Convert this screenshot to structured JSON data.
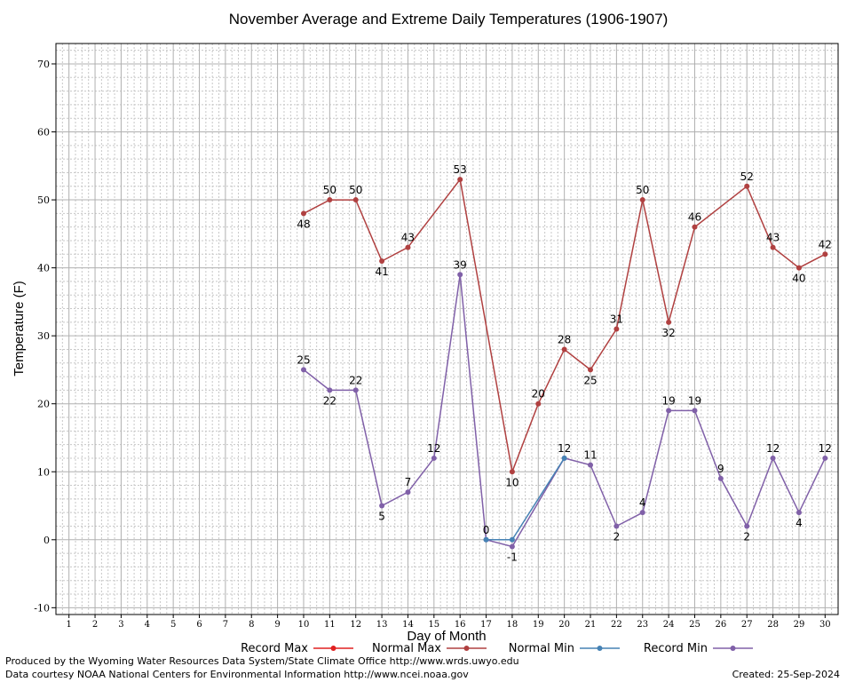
{
  "chart_data": {
    "type": "line",
    "title": "November Average and Extreme Daily Temperatures (1906-1907)",
    "xlabel": "Day of Month",
    "ylabel": "Temperature (F)",
    "xlim": [
      0.5,
      30.5
    ],
    "ylim": [
      -11,
      73
    ],
    "x_ticks": [
      1,
      2,
      3,
      4,
      5,
      6,
      7,
      8,
      9,
      10,
      11,
      12,
      13,
      14,
      15,
      16,
      17,
      18,
      19,
      20,
      21,
      22,
      23,
      24,
      25,
      26,
      27,
      28,
      29,
      30
    ],
    "y_ticks": [
      -10,
      0,
      10,
      20,
      30,
      40,
      50,
      60,
      70
    ],
    "grid": true,
    "legend_position": "bottom",
    "series": [
      {
        "name": "Record Max",
        "color": "#e02020",
        "x": [],
        "values": [],
        "labels_visible": false
      },
      {
        "name": "Normal Max",
        "color": "#b04040",
        "x": [
          10,
          11,
          12,
          13,
          14,
          16,
          18,
          19,
          20,
          21,
          22,
          23,
          24,
          25,
          27,
          28,
          29,
          30
        ],
        "values": [
          48,
          50,
          50,
          41,
          43,
          53,
          10,
          20,
          28,
          25,
          31,
          50,
          32,
          46,
          52,
          43,
          40,
          42
        ],
        "labels_visible": true
      },
      {
        "name": "Normal Min",
        "color": "#4682b4",
        "x": [
          17,
          18,
          20
        ],
        "values": [
          0,
          0,
          12
        ],
        "labels_visible": false
      },
      {
        "name": "Record Min",
        "color": "#8060a8",
        "x": [
          10,
          11,
          12,
          13,
          14,
          15,
          16,
          17,
          18,
          20,
          21,
          22,
          23,
          24,
          25,
          26,
          27,
          28,
          29,
          30
        ],
        "values": [
          25,
          22,
          22,
          5,
          7,
          12,
          39,
          0,
          -1,
          12,
          11,
          2,
          4,
          19,
          19,
          9,
          2,
          12,
          4,
          12
        ],
        "labels_visible": true
      }
    ]
  },
  "footer": {
    "produced_by": "Produced by the Wyoming Water Resources Data System/State Climate Office http://www.wrds.uwyo.edu",
    "data_courtesy": "Data courtesy NOAA National Centers for Environmental Information http://www.ncei.noaa.gov",
    "created": "Created:  25-Sep-2024"
  }
}
